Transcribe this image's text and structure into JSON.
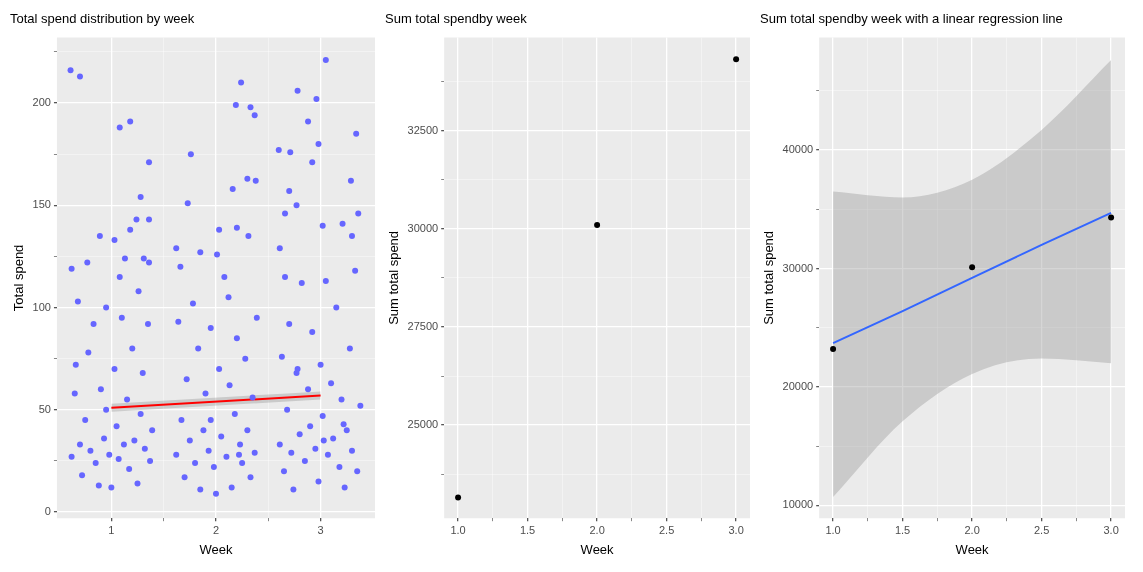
{
  "chart_data": [
    {
      "type": "scatter",
      "title": "Total spend distribution by week",
      "xlabel": "Week",
      "ylabel": "Total spend",
      "xlim": [
        0.48,
        3.52
      ],
      "ylim": [
        -3,
        232
      ],
      "xticks": [
        1,
        {
          "value": 1.5,
          "label": null
        },
        2,
        {
          "value": 2.5,
          "label": null
        },
        3
      ],
      "yticks": [
        0,
        {
          "value": 25,
          "label": null
        },
        50,
        {
          "value": 75,
          "label": null
        },
        100,
        {
          "value": 125,
          "label": null
        },
        150,
        {
          "value": 175,
          "label": null
        },
        200,
        {
          "value": 225,
          "label": null
        }
      ],
      "grid": true,
      "legend": false,
      "marker": "circle",
      "series": [
        {
          "type": "scatter",
          "color": "#6666ff",
          "x": [
            0.61,
            0.7,
            1.08,
            1.18,
            1.36,
            1.28,
            1.24,
            1.36,
            1.18,
            0.89,
            1.03,
            0.62,
            0.77,
            1.13,
            1.31,
            1.36,
            1.76,
            1.73,
            2.16,
            2.24,
            2.19,
            2.33,
            2.37,
            2.3,
            2.38,
            2.03,
            2.2,
            2.31,
            1.62,
            1.85,
            2.01,
            3.05,
            2.78,
            2.96,
            3.34,
            2.98,
            2.6,
            2.71,
            2.88,
            2.92,
            3.29,
            2.7,
            2.77,
            2.66,
            3.36,
            3.02,
            3.21,
            3.3,
            2.61,
            0.62,
            0.65,
            0.68,
            0.7,
            0.72,
            0.75,
            0.78,
            0.8,
            0.83,
            0.85,
            0.88,
            0.9,
            0.93,
            0.95,
            0.98,
            1.0,
            1.03,
            1.05,
            1.07,
            1.1,
            1.12,
            1.15,
            1.17,
            1.2,
            1.22,
            1.25,
            1.28,
            1.3,
            1.32,
            1.35,
            1.37,
            1.39,
            0.66,
            1.08,
            0.95,
            1.26,
            1.62,
            1.64,
            1.67,
            1.7,
            1.72,
            1.75,
            1.78,
            1.8,
            1.83,
            1.85,
            1.88,
            1.9,
            1.93,
            1.95,
            1.98,
            2.0,
            2.03,
            2.05,
            2.08,
            2.1,
            2.13,
            2.15,
            2.18,
            2.2,
            2.23,
            2.25,
            2.28,
            2.3,
            2.33,
            2.35,
            2.37,
            2.39,
            1.66,
            2.12,
            1.95,
            2.22,
            2.61,
            2.63,
            2.65,
            2.68,
            2.7,
            2.72,
            2.74,
            2.77,
            2.8,
            2.82,
            2.85,
            2.88,
            2.9,
            2.92,
            2.95,
            2.98,
            3.0,
            3.02,
            3.05,
            3.07,
            3.1,
            3.12,
            3.15,
            3.18,
            3.2,
            3.23,
            3.25,
            3.28,
            3.3,
            3.33,
            3.35,
            3.38,
            2.78,
            3.03,
            3.22,
            2.66
          ],
          "values": [
            216,
            213,
            188,
            191,
            171,
            154,
            143,
            143,
            138,
            135,
            133,
            119,
            122,
            124,
            124,
            122,
            175,
            151,
            158,
            210,
            199,
            198,
            194,
            163,
            162,
            138,
            139,
            135,
            129,
            127,
            126,
            221,
            206,
            202,
            185,
            180,
            177,
            176,
            191,
            171,
            162,
            157,
            150,
            146,
            146,
            140,
            141,
            135,
            129,
            27,
            58,
            103,
            33,
            18,
            45,
            78,
            30,
            92,
            24,
            13,
            60,
            36,
            100,
            28,
            12,
            70,
            42,
            26,
            95,
            33,
            55,
            21,
            80,
            35,
            14,
            48,
            68,
            31,
            92,
            25,
            40,
            72,
            115,
            50,
            108,
            28,
            93,
            45,
            17,
            65,
            35,
            102,
            24,
            80,
            11,
            40,
            58,
            30,
            90,
            22,
            9,
            70,
            37,
            115,
            27,
            62,
            12,
            48,
            85,
            33,
            24,
            75,
            40,
            17,
            56,
            29,
            95,
            120,
            105,
            45,
            28,
            33,
            76,
            20,
            50,
            92,
            29,
            11,
            68,
            38,
            112,
            25,
            60,
            42,
            88,
            31,
            15,
            72,
            47,
            113,
            28,
            63,
            36,
            100,
            22,
            55,
            12,
            40,
            80,
            30,
            118,
            20,
            52,
            70,
            35,
            43,
            115
          ]
        },
        {
          "type": "line",
          "color": "#ff0000",
          "marker": "none",
          "x": [
            1,
            3
          ],
          "values": [
            51,
            57
          ],
          "lower": [
            49,
            55
          ],
          "upper": [
            53,
            59
          ]
        }
      ]
    },
    {
      "type": "scatter",
      "title": "Sum total spendby week",
      "xlabel": "Week",
      "ylabel": "Sum total spend",
      "xlim": [
        0.9,
        3.1
      ],
      "ylim": [
        22630,
        34870
      ],
      "xticks": [
        {
          "value": 1,
          "label": "1.0"
        },
        {
          "value": 1.25,
          "label": null
        },
        1.5,
        {
          "value": 1.75,
          "label": null
        },
        {
          "value": 2,
          "label": "2.0"
        },
        {
          "value": 2.25,
          "label": null
        },
        2.5,
        {
          "value": 2.75,
          "label": null
        },
        {
          "value": 3,
          "label": "3.0"
        }
      ],
      "yticks": [
        {
          "value": 23750,
          "label": null
        },
        25000,
        {
          "value": 26250,
          "label": null
        },
        27500,
        {
          "value": 28750,
          "label": null
        },
        30000,
        {
          "value": 31250,
          "label": null
        },
        32500,
        {
          "value": 33750,
          "label": null
        }
      ],
      "grid": true,
      "legend": false,
      "marker": "circle",
      "series": [
        {
          "type": "scatter",
          "color": "#000000",
          "x": [
            1,
            2,
            3
          ],
          "values": [
            23160,
            30100,
            34320
          ]
        }
      ]
    },
    {
      "type": "scatter",
      "title": "Sum total spendby week with a linear regression line",
      "xlabel": "Week",
      "ylabel": "Sum total spend",
      "xlim": [
        0.9,
        3.1
      ],
      "ylim": [
        8920,
        49490
      ],
      "xticks": [
        {
          "value": 1,
          "label": "1.0"
        },
        {
          "value": 1.25,
          "label": null
        },
        1.5,
        {
          "value": 1.75,
          "label": null
        },
        {
          "value": 2,
          "label": "2.0"
        },
        {
          "value": 2.25,
          "label": null
        },
        2.5,
        {
          "value": 2.75,
          "label": null
        },
        {
          "value": 3,
          "label": "3.0"
        }
      ],
      "yticks": [
        10000,
        {
          "value": 15000,
          "label": null
        },
        20000,
        {
          "value": 25000,
          "label": null
        },
        30000,
        {
          "value": 35000,
          "label": null
        },
        40000,
        {
          "value": 45000,
          "label": null
        }
      ],
      "grid": true,
      "legend": false,
      "marker": "circle",
      "series": [
        {
          "type": "line",
          "color": "#3366ff",
          "marker": "none",
          "x": [
            1,
            1.5,
            2,
            2.5,
            3
          ],
          "values": [
            23700,
            26400,
            29200,
            32000,
            34700
          ],
          "lower": [
            10700,
            17100,
            21100,
            22400,
            22000
          ],
          "upper": [
            36500,
            36000,
            37500,
            41700,
            47600
          ]
        },
        {
          "type": "scatter",
          "color": "#000000",
          "x": [
            1,
            2,
            3
          ],
          "values": [
            23200,
            30100,
            34300
          ]
        }
      ]
    }
  ]
}
